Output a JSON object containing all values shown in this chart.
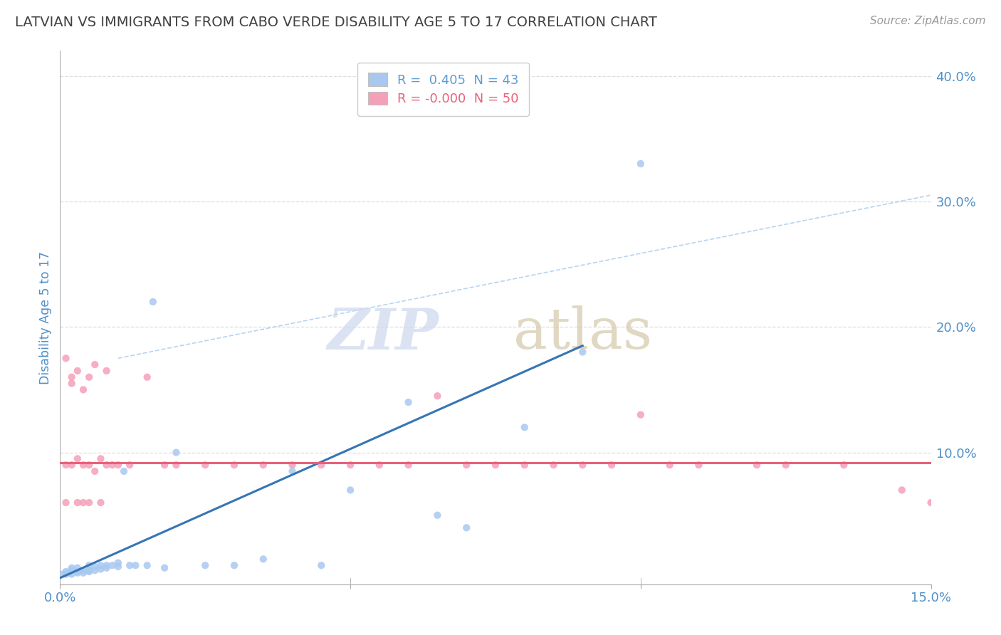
{
  "title": "LATVIAN VS IMMIGRANTS FROM CABO VERDE DISABILITY AGE 5 TO 17 CORRELATION CHART",
  "source": "Source: ZipAtlas.com",
  "ylabel": "Disability Age 5 to 17",
  "xlim": [
    0.0,
    0.15
  ],
  "ylim": [
    -0.005,
    0.42
  ],
  "xticks": [
    0.0,
    0.05,
    0.1,
    0.15
  ],
  "xtick_labels": [
    "0.0%",
    "",
    "",
    "15.0%"
  ],
  "ytick_positions": [
    0.0,
    0.1,
    0.2,
    0.3,
    0.4
  ],
  "ytick_labels": [
    "",
    "10.0%",
    "20.0%",
    "30.0%",
    "40.0%"
  ],
  "legend_entries": [
    {
      "label": "R =  0.405  N = 43",
      "color": "#5b9bd5"
    },
    {
      "label": "R = -0.000  N = 50",
      "color": "#e8627a"
    }
  ],
  "latvian_x": [
    0.0005,
    0.001,
    0.001,
    0.0015,
    0.002,
    0.002,
    0.002,
    0.003,
    0.003,
    0.003,
    0.004,
    0.004,
    0.005,
    0.005,
    0.005,
    0.006,
    0.006,
    0.007,
    0.007,
    0.008,
    0.008,
    0.009,
    0.01,
    0.01,
    0.011,
    0.012,
    0.013,
    0.015,
    0.016,
    0.018,
    0.02,
    0.025,
    0.03,
    0.035,
    0.04,
    0.045,
    0.05,
    0.06,
    0.065,
    0.07,
    0.08,
    0.09,
    0.1
  ],
  "latvian_y": [
    0.003,
    0.003,
    0.005,
    0.004,
    0.003,
    0.006,
    0.008,
    0.004,
    0.005,
    0.008,
    0.004,
    0.006,
    0.005,
    0.006,
    0.01,
    0.006,
    0.009,
    0.007,
    0.01,
    0.008,
    0.01,
    0.01,
    0.009,
    0.012,
    0.085,
    0.01,
    0.01,
    0.01,
    0.22,
    0.008,
    0.1,
    0.01,
    0.01,
    0.015,
    0.085,
    0.01,
    0.07,
    0.14,
    0.05,
    0.04,
    0.12,
    0.18,
    0.33
  ],
  "caboverde_x": [
    0.001,
    0.001,
    0.001,
    0.002,
    0.002,
    0.002,
    0.003,
    0.003,
    0.003,
    0.004,
    0.004,
    0.004,
    0.005,
    0.005,
    0.005,
    0.006,
    0.006,
    0.007,
    0.007,
    0.008,
    0.008,
    0.009,
    0.01,
    0.012,
    0.015,
    0.018,
    0.02,
    0.025,
    0.03,
    0.035,
    0.04,
    0.045,
    0.05,
    0.055,
    0.06,
    0.065,
    0.07,
    0.075,
    0.08,
    0.085,
    0.09,
    0.095,
    0.1,
    0.105,
    0.11,
    0.12,
    0.125,
    0.135,
    0.145,
    0.15
  ],
  "caboverde_y": [
    0.175,
    0.09,
    0.06,
    0.16,
    0.155,
    0.09,
    0.165,
    0.095,
    0.06,
    0.15,
    0.09,
    0.06,
    0.16,
    0.09,
    0.06,
    0.085,
    0.17,
    0.095,
    0.06,
    0.165,
    0.09,
    0.09,
    0.09,
    0.09,
    0.16,
    0.09,
    0.09,
    0.09,
    0.09,
    0.09,
    0.09,
    0.09,
    0.09,
    0.09,
    0.09,
    0.145,
    0.09,
    0.09,
    0.09,
    0.09,
    0.09,
    0.09,
    0.13,
    0.09,
    0.09,
    0.09,
    0.09,
    0.09,
    0.07,
    0.06
  ],
  "dot_color_latvian": "#a8c8f0",
  "dot_color_caboverde": "#f4a0b8",
  "trend_color_latvian": "#3575b5",
  "trend_color_caboverde": "#e8607a",
  "refline_color": "#aac8e8",
  "background_color": "#ffffff",
  "grid_color": "#d0d0d0",
  "title_color": "#404040",
  "axis_label_color": "#5090c8",
  "tick_label_color": "#5090c8",
  "latvian_trend_x0": 0.0,
  "latvian_trend_y0": 0.0,
  "latvian_trend_x1": 0.09,
  "latvian_trend_y1": 0.185,
  "caboverde_trend_x0": 0.0,
  "caboverde_trend_y0": 0.092,
  "caboverde_trend_x1": 0.15,
  "caboverde_trend_y1": 0.092,
  "refline_x0": 0.01,
  "refline_y0": 0.175,
  "refline_x1": 0.15,
  "refline_y1": 0.305
}
